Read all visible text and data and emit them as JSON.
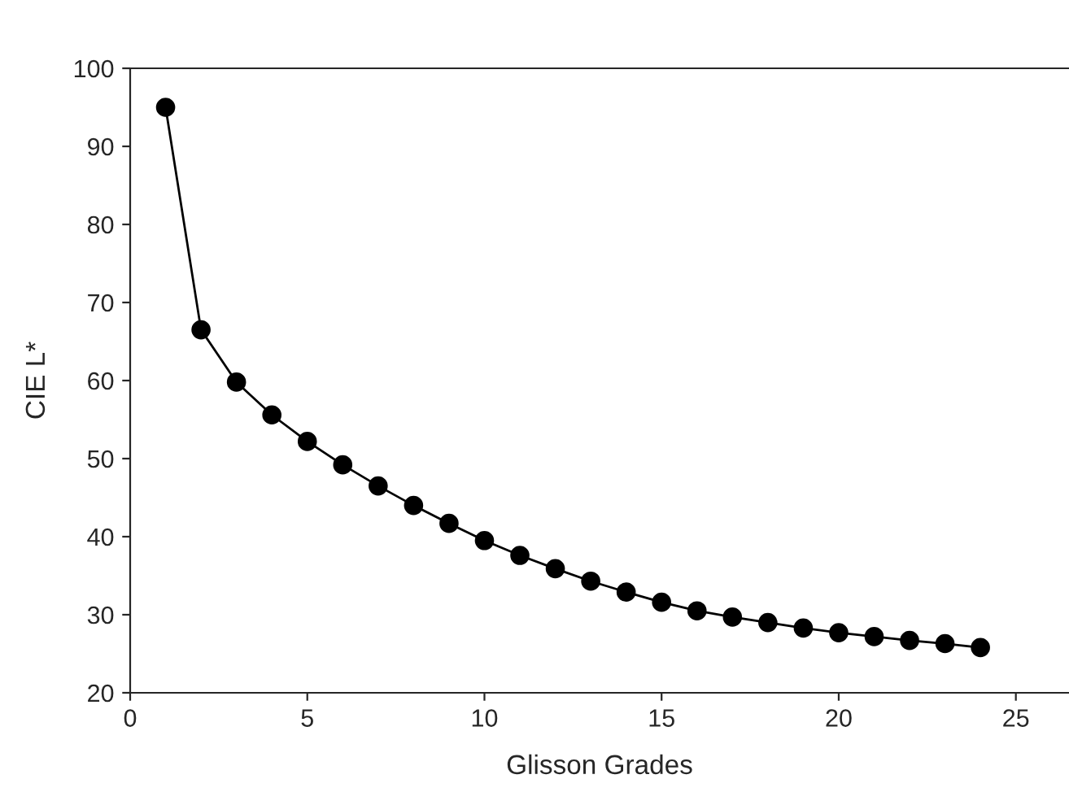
{
  "chart_data": {
    "type": "line",
    "xlabel": "Glisson Grades",
    "ylabel": "CIE L*",
    "x": [
      1,
      2,
      3,
      4,
      5,
      6,
      7,
      8,
      9,
      10,
      11,
      12,
      13,
      14,
      15,
      16,
      17,
      18,
      19,
      20,
      21,
      22,
      23,
      24
    ],
    "series": [
      {
        "color": "#000000",
        "values": [
          95,
          66.5,
          59.8,
          55.6,
          52.2,
          49.2,
          46.5,
          44,
          41.7,
          39.5,
          37.6,
          35.9,
          34.3,
          32.9,
          31.6,
          30.5,
          29.7,
          29.0,
          28.3,
          27.7,
          27.2,
          26.7,
          26.3,
          25.8
        ]
      }
    ],
    "xlim": [
      0,
      26.5
    ],
    "xticks": [
      0,
      5,
      10,
      15,
      20,
      25
    ],
    "ylim": [
      20,
      100
    ],
    "yticks": [
      20,
      30,
      40,
      50,
      60,
      70,
      80,
      90,
      100
    ],
    "marker": "circle",
    "line_style": "solid",
    "grid": false,
    "legend": false
  }
}
